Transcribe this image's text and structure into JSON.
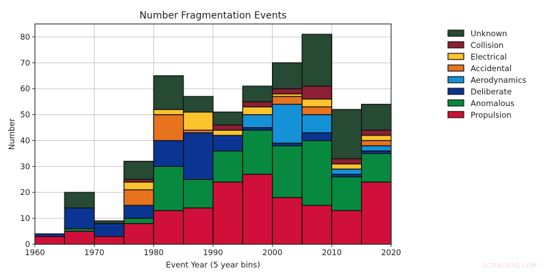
{
  "chart_data": {
    "type": "bar",
    "stacked": true,
    "title": "Number Fragmentation Events",
    "xlabel": "Event Year (5 year bins)",
    "ylabel": "Number",
    "xlim": [
      1960,
      2020
    ],
    "ylim": [
      0,
      85
    ],
    "xticks": [
      1960,
      1970,
      1980,
      1990,
      2000,
      2010,
      2020
    ],
    "yticks": [
      0,
      10,
      20,
      30,
      40,
      50,
      60,
      70,
      80
    ],
    "grid": true,
    "legend_position": "outside right, upper",
    "bin_width": 5,
    "categories": [
      1960,
      1965,
      1970,
      1975,
      1980,
      1985,
      1990,
      1995,
      2000,
      2005,
      2010,
      2015
    ],
    "series": [
      {
        "name": "Propulsion",
        "color": "#d0103a",
        "values": [
          3,
          5,
          3,
          8,
          13,
          14,
          24,
          27,
          18,
          15,
          13,
          24
        ]
      },
      {
        "name": "Anomalous",
        "color": "#078a3f",
        "values": [
          0,
          1,
          0,
          2,
          17,
          11,
          12,
          17,
          20,
          25,
          13,
          11
        ]
      },
      {
        "name": "Deliberate",
        "color": "#0a3592",
        "values": [
          1,
          8,
          5,
          5,
          10,
          18,
          6,
          1,
          1,
          3,
          1,
          1
        ]
      },
      {
        "name": "Aerodynamics",
        "color": "#1591d8",
        "values": [
          0,
          0,
          0,
          0,
          0,
          0,
          0,
          5,
          15,
          7,
          2,
          2
        ]
      },
      {
        "name": "Accidental",
        "color": "#e8731f",
        "values": [
          0,
          0,
          0,
          6,
          10,
          1,
          0,
          0,
          3,
          3,
          0,
          2
        ]
      },
      {
        "name": "Electrical",
        "color": "#fbc32d",
        "values": [
          0,
          0,
          0,
          3,
          2,
          7,
          2,
          3,
          1,
          3,
          2,
          2
        ]
      },
      {
        "name": "Collision",
        "color": "#8c1f33",
        "values": [
          0,
          0,
          0,
          1,
          0,
          0,
          2,
          2,
          2,
          5,
          2,
          2
        ]
      },
      {
        "name": "Unknown",
        "color": "#264a33",
        "values": [
          0,
          6,
          1,
          7,
          13,
          6,
          5,
          6,
          10,
          20,
          19,
          10
        ]
      }
    ],
    "totals": [
      4,
      20,
      9,
      32,
      65,
      57,
      51,
      61,
      70,
      81,
      52,
      54
    ],
    "legend_order": [
      "Unknown",
      "Collision",
      "Electrical",
      "Accidental",
      "Aerodynamics",
      "Deliberate",
      "Anomalous",
      "Propulsion"
    ]
  },
  "watermark": "SCIENCEAQ.COM"
}
